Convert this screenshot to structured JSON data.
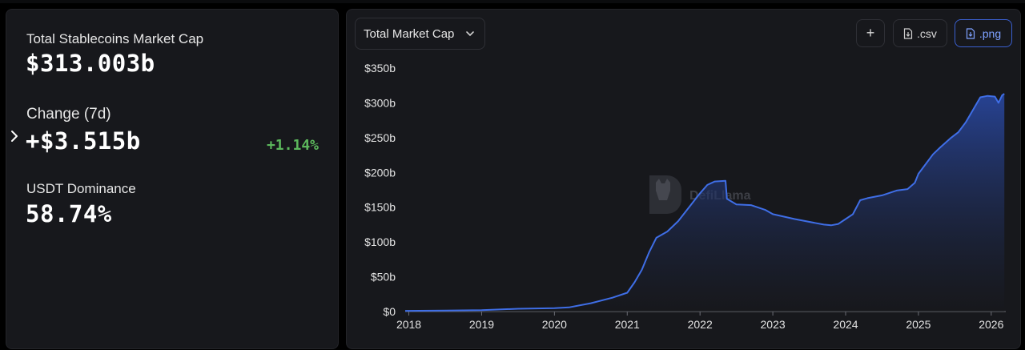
{
  "stats": {
    "market_cap_label": "Total Stablecoins Market Cap",
    "market_cap_value": "$313.003b",
    "change_label": "Change (7d)",
    "change_value": "+$3.515b",
    "change_percent": "+1.14%",
    "dominance_label": "USDT Dominance",
    "dominance_value": "58.74%"
  },
  "toolbar": {
    "metric_select": "Total Market Cap",
    "plus_label": "+",
    "csv_label": ".csv",
    "png_label": ".png"
  },
  "watermark": "DefiLlama",
  "colors": {
    "line": "#3f6ee6",
    "positive": "#5cb85c",
    "accent": "#3a5fcf"
  },
  "chart_data": {
    "type": "area",
    "title": "",
    "xlabel": "",
    "ylabel": "",
    "xlim": [
      2017.95,
      2026.2
    ],
    "ylim": [
      0,
      350
    ],
    "y_ticks": [
      0,
      50,
      100,
      150,
      200,
      250,
      300,
      350
    ],
    "y_tick_labels": [
      "$0",
      "$50b",
      "$100b",
      "$150b",
      "$200b",
      "$250b",
      "$300b",
      "$350b"
    ],
    "x_ticks": [
      2018,
      2019,
      2020,
      2021,
      2022,
      2023,
      2024,
      2025,
      2026
    ],
    "x_tick_labels": [
      "2018",
      "2019",
      "2020",
      "2021",
      "2022",
      "2023",
      "2024",
      "2025",
      "2026"
    ],
    "grid": false,
    "series": [
      {
        "x": [
          2017.95,
          2018.5,
          2019.0,
          2019.5,
          2020.0,
          2020.2,
          2020.5,
          2020.8,
          2021.0,
          2021.1,
          2021.2,
          2021.3,
          2021.4,
          2021.55,
          2021.7,
          2021.85,
          2022.0,
          2022.1,
          2022.2,
          2022.35,
          2022.37,
          2022.5,
          2022.7,
          2022.9,
          2023.0,
          2023.3,
          2023.6,
          2023.7,
          2023.8,
          2023.9,
          2024.0,
          2024.1,
          2024.2,
          2024.3,
          2024.5,
          2024.7,
          2024.85,
          2024.95,
          2025.0,
          2025.1,
          2025.2,
          2025.3,
          2025.45,
          2025.55,
          2025.65,
          2025.75,
          2025.85,
          2025.95,
          2026.05,
          2026.1,
          2026.15,
          2026.18
        ],
        "values": [
          1,
          1.5,
          2,
          4,
          5,
          6,
          12,
          20,
          27,
          42,
          60,
          85,
          106,
          115,
          130,
          150,
          170,
          182,
          187,
          188,
          162,
          154,
          153,
          146,
          140,
          133,
          127,
          125,
          124,
          126,
          133,
          140,
          160,
          163,
          167,
          174,
          176,
          185,
          198,
          212,
          226,
          236,
          250,
          258,
          272,
          290,
          308,
          310,
          309,
          300,
          311,
          313
        ]
      }
    ]
  }
}
